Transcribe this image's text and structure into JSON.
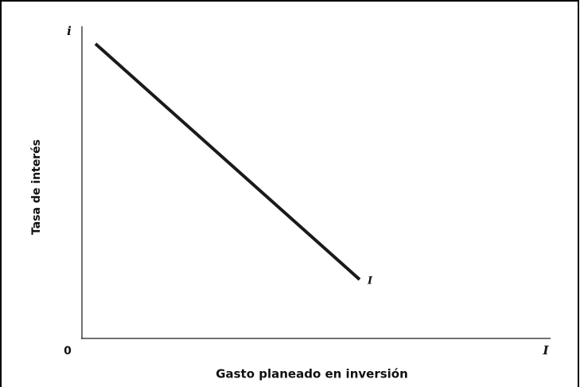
{
  "axes": {
    "y_symbol": "i",
    "x_symbol": "I",
    "origin": "0",
    "x_title": "Gasto planeado en inversión",
    "y_title": "Tasa de interés"
  },
  "curve": {
    "label": "I"
  }
}
